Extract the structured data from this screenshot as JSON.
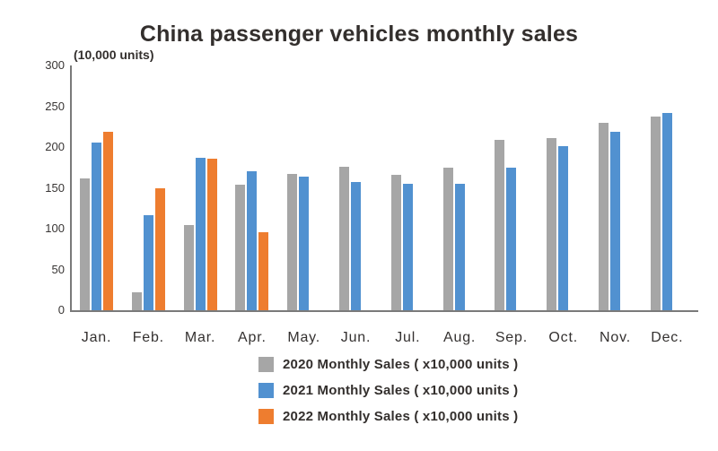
{
  "page": {
    "background": "#ffffff",
    "text_color": "#332f2d",
    "axis_color": "#7a7a7a"
  },
  "chart_data": {
    "type": "bar",
    "title": "China passenger vehicles monthly sales",
    "unit_label": "(10,000 units)",
    "xlabel": "",
    "ylabel": "(10,000 units)",
    "ylim": [
      0,
      300
    ],
    "yticks": [
      0,
      50,
      100,
      150,
      200,
      250,
      300
    ],
    "grid": false,
    "legend_position": "bottom",
    "categories": [
      "Jan.",
      "Feb.",
      "Mar.",
      "Apr.",
      "May.",
      "Jun.",
      "Jul.",
      "Aug.",
      "Sep.",
      "Oct.",
      "Nov.",
      "Dec."
    ],
    "series": [
      {
        "name": "2020",
        "legend_label": "2020 Monthly Sales ( x10,000 units )",
        "color": "#a6a6a6",
        "values": [
          161,
          22,
          104,
          154,
          167,
          176,
          166,
          175,
          209,
          211,
          230,
          237
        ]
      },
      {
        "name": "2021",
        "legend_label": "2021 Monthly Sales ( x10,000 units )",
        "color": "#5191d0",
        "values": [
          205,
          116,
          187,
          170,
          164,
          157,
          155,
          155,
          175,
          201,
          219,
          242
        ]
      },
      {
        "name": "2022",
        "legend_label": "2022 Monthly Sales ( x10,000 units )",
        "color": "#ee7d2f",
        "values": [
          219,
          149,
          186,
          96,
          null,
          null,
          null,
          null,
          null,
          null,
          null,
          null
        ]
      }
    ]
  }
}
